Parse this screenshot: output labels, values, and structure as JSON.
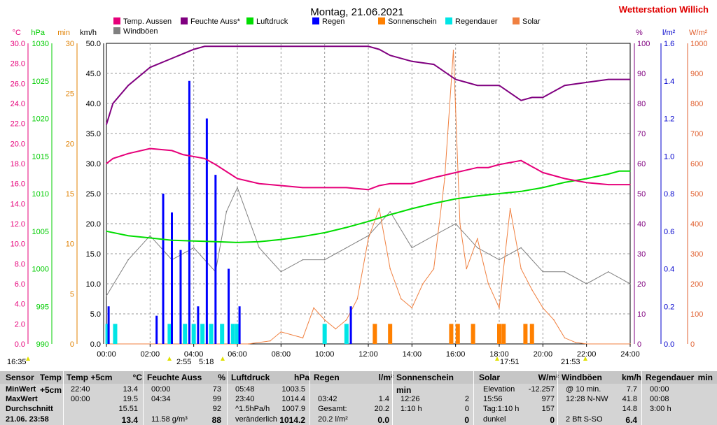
{
  "title": "Montag, 21.06.2021",
  "station": "Wetterstation Willich",
  "colors": {
    "temp": "#e6007a",
    "hum": "#800080",
    "press": "#00dd00",
    "rain": "#0000ff",
    "sun": "#ff8000",
    "raindur": "#00e5e5",
    "solar": "#f08040",
    "gust": "#808080"
  },
  "axes": {
    "temp": {
      "unit": "°C",
      "ticks": [
        "0.0",
        "2.0",
        "4.0",
        "6.0",
        "8.0",
        "10.0",
        "12.0",
        "14.0",
        "16.0",
        "18.0",
        "20.0",
        "22.0",
        "24.0",
        "26.0",
        "28.0",
        "30.0"
      ]
    },
    "press": {
      "unit": "hPa",
      "ticks": [
        "990",
        "995",
        "1000",
        "1005",
        "1010",
        "1015",
        "1020",
        "1025",
        "1030"
      ]
    },
    "min": {
      "unit": "min",
      "ticks": [
        "0",
        "5",
        "10",
        "15",
        "20",
        "25",
        "30"
      ]
    },
    "kmh": {
      "unit": "km/h",
      "ticks": [
        "0.0",
        "5.0",
        "10.0",
        "15.0",
        "20.0",
        "25.0",
        "30.0",
        "35.0",
        "40.0",
        "45.0",
        "50.0"
      ]
    },
    "pct": {
      "unit": "%",
      "ticks": [
        "0",
        "10",
        "20",
        "30",
        "40",
        "50",
        "60",
        "70",
        "80",
        "90",
        "100"
      ]
    },
    "lm2": {
      "unit": "l/m²",
      "ticks": [
        "0.0",
        "0.2",
        "0.4",
        "0.6",
        "0.8",
        "1.0",
        "1.2",
        "1.4",
        "1.6"
      ]
    },
    "wm2": {
      "unit": "W/m²",
      "ticks": [
        "0",
        "100",
        "200",
        "300",
        "400",
        "500",
        "600",
        "700",
        "800",
        "900",
        "1000"
      ]
    },
    "time": {
      "ticks": [
        "00:00",
        "02:00",
        "04:00",
        "06:00",
        "08:00",
        "10:00",
        "12:00",
        "14:00",
        "16:00",
        "18:00",
        "20:00",
        "22:00",
        "24:00"
      ]
    }
  },
  "legend": [
    {
      "label": "Temp. Aussen",
      "color": "#e6007a"
    },
    {
      "label": "Feuchte Auss*",
      "color": "#800080"
    },
    {
      "label": "Luftdruck",
      "color": "#00dd00"
    },
    {
      "label": "Regen",
      "color": "#0000ff"
    },
    {
      "label": "Sonnenschein",
      "color": "#ff8000"
    },
    {
      "label": "Regendauer",
      "color": "#00e5e5"
    },
    {
      "label": "Solar",
      "color": "#f08040"
    },
    {
      "label": "Windböen",
      "color": "#808080"
    }
  ],
  "markers": {
    "sunrise": "5:18",
    "noon": "17:51",
    "sunset": "21:53",
    "left_time": "16:35",
    "left_time2": "2:55"
  },
  "chart_data": {
    "type": "line",
    "x_unit": "hours",
    "xlim": [
      0,
      24
    ],
    "series": [
      {
        "name": "Temp. Aussen",
        "axis": "temp",
        "x": [
          0,
          0.3,
          1,
          2,
          3,
          3.5,
          4.5,
          5,
          6,
          7,
          8,
          9,
          10,
          11,
          12,
          12.5,
          13,
          14,
          15,
          16,
          17,
          17.5,
          18,
          19,
          20,
          21,
          22,
          23,
          24
        ],
        "y": [
          18.0,
          18.5,
          19.0,
          19.5,
          19.3,
          18.9,
          18.5,
          17.9,
          16.5,
          16.0,
          15.8,
          15.6,
          15.6,
          15.6,
          15.4,
          15.8,
          16.0,
          16.0,
          16.6,
          17.1,
          17.6,
          17.6,
          17.9,
          18.3,
          17.1,
          16.5,
          16.1,
          15.9,
          15.9
        ]
      },
      {
        "name": "Feuchte Auss*",
        "axis": "pct",
        "x": [
          0,
          0.3,
          1,
          2,
          3,
          4,
          4.5,
          5,
          6,
          7,
          8,
          9,
          10,
          11,
          12,
          12.5,
          13,
          14,
          15,
          16,
          16.5,
          17,
          18,
          19,
          19.5,
          20,
          21,
          22,
          23,
          24
        ],
        "y": [
          73,
          80,
          86,
          92,
          95,
          98,
          99,
          99,
          99,
          99,
          99,
          99,
          99,
          99,
          99,
          98,
          96,
          94,
          93,
          88,
          87,
          86,
          86,
          81,
          82,
          82,
          86,
          87,
          88,
          88
        ]
      },
      {
        "name": "Luftdruck",
        "axis": "press",
        "x": [
          0,
          1,
          2,
          3,
          4,
          5,
          6,
          7,
          8,
          9,
          10,
          11,
          12,
          13,
          14,
          15,
          16,
          17,
          18,
          19,
          20,
          21,
          22,
          23,
          23.5,
          24
        ],
        "y": [
          1005.0,
          1004.4,
          1004.1,
          1003.8,
          1003.7,
          1003.6,
          1003.5,
          1003.6,
          1003.9,
          1004.3,
          1004.8,
          1005.5,
          1006.3,
          1007.2,
          1008.0,
          1008.7,
          1009.3,
          1009.7,
          1010.0,
          1010.3,
          1010.8,
          1011.5,
          1012.0,
          1012.6,
          1013.0,
          1013.0
        ]
      },
      {
        "name": "Regen",
        "axis": "lm2",
        "type": "bar",
        "x": [
          0.1,
          2.3,
          2.6,
          3.0,
          3.4,
          3.8,
          4.2,
          4.6,
          5.0,
          5.6,
          6.1,
          11.2
        ],
        "y": [
          0.2,
          0.15,
          0.8,
          0.7,
          0.5,
          1.4,
          0.2,
          1.2,
          0.9,
          0.4,
          0.2,
          0.2
        ]
      },
      {
        "name": "Sonnenschein",
        "axis": "min",
        "type": "bar",
        "x": [
          12.3,
          13.0,
          15.8,
          16.1,
          16.8,
          18.0,
          18.2,
          19.2,
          19.5
        ],
        "y": [
          2,
          2,
          2,
          2,
          2,
          2,
          2,
          2,
          2
        ]
      },
      {
        "name": "Regendauer",
        "axis": "min",
        "type": "bar",
        "x": [
          0.05,
          0.4,
          2.9,
          3.6,
          4.0,
          4.4,
          4.8,
          5.3,
          5.8,
          6.0,
          10.0,
          11.0
        ],
        "y": [
          2,
          2,
          2,
          2,
          2,
          2,
          2,
          2,
          2,
          2,
          2,
          2
        ]
      },
      {
        "name": "Solar",
        "axis": "wm2",
        "x": [
          0,
          6.5,
          7.5,
          8,
          9,
          9.5,
          10,
          10.5,
          11,
          11.5,
          12,
          12.5,
          13,
          13.5,
          14,
          14.5,
          15,
          15.5,
          15.9,
          16.2,
          16.5,
          17,
          17.5,
          18,
          18.5,
          19,
          19.5,
          20,
          20.5,
          21,
          21.5,
          22,
          24
        ],
        "y": [
          0,
          0,
          10,
          40,
          20,
          120,
          80,
          50,
          80,
          150,
          350,
          450,
          250,
          150,
          120,
          200,
          250,
          550,
          977,
          400,
          250,
          350,
          200,
          120,
          450,
          250,
          180,
          120,
          80,
          20,
          5,
          0,
          0
        ]
      },
      {
        "name": "Windböen",
        "axis": "kmh",
        "x": [
          0,
          1,
          2,
          3,
          4,
          5,
          5.5,
          6,
          7,
          8,
          9,
          10,
          11,
          12,
          13,
          14,
          15,
          16,
          17,
          18,
          19,
          20,
          21,
          22,
          23,
          24
        ],
        "y": [
          8,
          14,
          18,
          14,
          16,
          12,
          22,
          26,
          16,
          12,
          14,
          14,
          16,
          18,
          22,
          16,
          18,
          20,
          16,
          14,
          16,
          12,
          12,
          10,
          12,
          10
        ]
      }
    ]
  },
  "stats": {
    "headers": [
      "Sensor",
      "Temp +5cm",
      "°C",
      "Feuchte Auss",
      "%",
      "Luftdruck",
      "hPa",
      "Regen",
      "l/m²",
      "Sonnenschein min",
      "Solar",
      "W/m²",
      "Windböen",
      "km/h",
      "Regendauer",
      "min"
    ],
    "row_labels": [
      "MinWert",
      "MaxWert",
      "Durchschnitt",
      "21.06. 23:58"
    ],
    "temp": [
      [
        "22:40",
        "13.4"
      ],
      [
        "00:00",
        "19.5"
      ],
      [
        "",
        "15.51"
      ],
      [
        "",
        "13.4"
      ]
    ],
    "hum": [
      [
        "00:00",
        "73"
      ],
      [
        "04:34",
        "99"
      ],
      [
        "",
        "92"
      ],
      [
        "11.58 g/m³",
        "88"
      ]
    ],
    "press": [
      [
        "05:48",
        "1003.5"
      ],
      [
        "23:40",
        "1014.4"
      ],
      [
        "^1.5hPa/h",
        "1007.9"
      ],
      [
        "veränderlich",
        "1014.2"
      ]
    ],
    "rain": [
      [
        "",
        ""
      ],
      [
        "03:42",
        "1.4"
      ],
      [
        "Gesamt:",
        "20.2"
      ],
      [
        "20.2 l/m²",
        "0.0"
      ]
    ],
    "sun": [
      [
        "",
        ""
      ],
      [
        "12:26",
        "2"
      ],
      [
        "1:10 h",
        "0"
      ],
      [
        "",
        "0"
      ]
    ],
    "solar": [
      [
        "Elevation",
        "-12.257"
      ],
      [
        "15:56",
        "977"
      ],
      [
        "Tag:1:10 h",
        "157"
      ],
      [
        "dunkel",
        "0"
      ]
    ],
    "gust": [
      [
        "@ 10 min.",
        "7.7"
      ],
      [
        "12:28  N-NW",
        "41.8"
      ],
      [
        "",
        "14.8"
      ],
      [
        "2 Bft S-SO",
        "6.4"
      ]
    ],
    "raindur": [
      [
        "00:00",
        ""
      ],
      [
        "00:08",
        ""
      ],
      [
        "3:00 h",
        ""
      ],
      [
        "",
        ""
      ]
    ]
  }
}
